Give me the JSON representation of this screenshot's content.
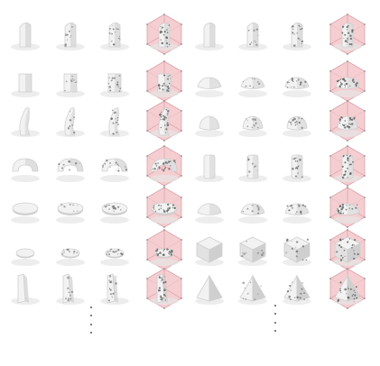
{
  "figure": {
    "rows": 7,
    "palette": {
      "form_light": "#f2f2f2",
      "form_mid": "#cfcfcf",
      "form_dark": "#8f8f8f",
      "shadow": "#e6e6e6",
      "hex_fill": "#f3c9cd",
      "hex_stroke": "#d9979f",
      "pattern": "#5a5a5a"
    },
    "shapes_per_row": [
      "tower",
      "column",
      "twisted-tower",
      "ring",
      "flat-disc",
      "small-disc",
      "wedge"
    ],
    "right_shapes_per_row": [
      "tower",
      "flat-mound",
      "mound",
      "cylinder-tower",
      "flat-mound",
      "cube",
      "pyramid"
    ],
    "columns": [
      {
        "kind": "form",
        "density": 0.15,
        "icon": "shape-icon"
      },
      {
        "kind": "form",
        "density": 0.35,
        "icon": "shape-icon"
      },
      {
        "kind": "form",
        "density": 0.55,
        "icon": "shape-icon"
      },
      {
        "kind": "hex-frame",
        "density": 0.8,
        "icon": "hex-frame-icon"
      },
      {
        "kind": "form",
        "density": 0.15,
        "icon": "shape-icon"
      },
      {
        "kind": "form",
        "density": 0.35,
        "icon": "shape-icon"
      },
      {
        "kind": "form",
        "density": 0.6,
        "icon": "shape-icon"
      },
      {
        "kind": "hex-frame",
        "density": 0.85,
        "icon": "hex-frame-icon"
      }
    ],
    "ellipsis_count": 2
  }
}
